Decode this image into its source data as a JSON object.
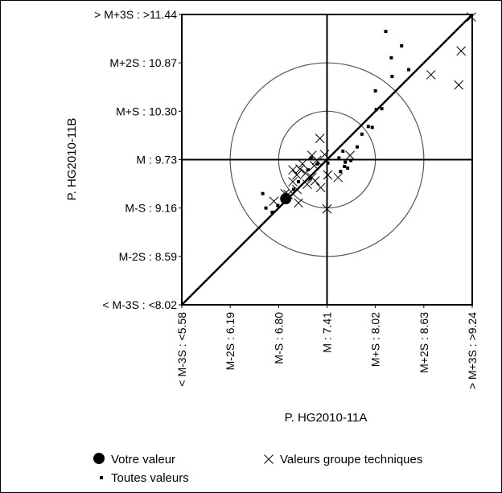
{
  "chart_data": {
    "type": "scatter",
    "xlabel": "P. HG2010-11A",
    "ylabel": "P. HG2010-11B",
    "xlim": [
      5.58,
      9.24
    ],
    "ylim": [
      8.02,
      11.44
    ],
    "x_ticks": [
      {
        "value": 5.58,
        "label": "< M-3S : <5.58"
      },
      {
        "value": 6.19,
        "label": "M-2S : 6.19"
      },
      {
        "value": 6.8,
        "label": "M-S : 6.80"
      },
      {
        "value": 7.41,
        "label": "M : 7.41"
      },
      {
        "value": 8.02,
        "label": "M+S : 8.02"
      },
      {
        "value": 8.63,
        "label": "M+2S : 8.63"
      },
      {
        "value": 9.24,
        "label": "> M+3S : >9.24"
      }
    ],
    "y_ticks": [
      {
        "value": 8.02,
        "label": "< M-3S : <8.02"
      },
      {
        "value": 8.59,
        "label": "M-2S : 8.59"
      },
      {
        "value": 9.16,
        "label": "M-S : 9.16"
      },
      {
        "value": 9.73,
        "label": "M : 9.73"
      },
      {
        "value": 10.3,
        "label": "M+S : 10.30"
      },
      {
        "value": 10.87,
        "label": "M+2S : 10.87"
      },
      {
        "value": 11.44,
        "label": "> M+3S : >11.44"
      }
    ],
    "mean": {
      "x": 7.41,
      "y": 9.73
    },
    "sd": {
      "x": 0.61,
      "y": 0.57
    },
    "circles_in_sd": [
      1,
      2
    ],
    "diagonal": true,
    "series": [
      {
        "name": "Votre valeur",
        "marker": "large-dot",
        "points": [
          [
            6.89,
            9.27
          ]
        ]
      },
      {
        "name": "Valeurs groupe techniques",
        "marker": "x",
        "points": [
          [
            7.32,
            9.98
          ],
          [
            7.22,
            9.78
          ],
          [
            7.38,
            9.79
          ],
          [
            7.7,
            9.78
          ],
          [
            6.98,
            9.61
          ],
          [
            7.07,
            9.62
          ],
          [
            7.1,
            9.68
          ],
          [
            7.25,
            9.66
          ],
          [
            7.03,
            9.55
          ],
          [
            7.14,
            9.57
          ],
          [
            7.26,
            9.48
          ],
          [
            7.42,
            9.55
          ],
          [
            7.55,
            9.52
          ],
          [
            7.16,
            9.44
          ],
          [
            7.33,
            9.4
          ],
          [
            6.98,
            9.47
          ],
          [
            7.03,
            9.38
          ],
          [
            6.92,
            9.32
          ],
          [
            7.05,
            9.22
          ],
          [
            6.74,
            9.24
          ],
          [
            6.88,
            9.33
          ],
          [
            7.41,
            9.15
          ],
          [
            7.28,
            9.72
          ],
          [
            8.72,
            10.73
          ],
          [
            9.07,
            10.61
          ],
          [
            9.1,
            11.01
          ],
          [
            9.23,
            11.41
          ],
          [
            7.22,
            9.52
          ]
        ]
      },
      {
        "name": "Toutes valeurs",
        "marker": "small-dot",
        "points": [
          [
            8.15,
            11.24
          ],
          [
            8.35,
            11.07
          ],
          [
            8.22,
            10.93
          ],
          [
            8.23,
            10.71
          ],
          [
            8.44,
            10.79
          ],
          [
            8.02,
            10.54
          ],
          [
            8.03,
            10.32
          ],
          [
            7.93,
            10.12
          ],
          [
            7.85,
            10.03
          ],
          [
            7.79,
            9.88
          ],
          [
            7.71,
            9.72
          ],
          [
            7.63,
            9.65
          ],
          [
            7.58,
            9.59
          ],
          [
            6.72,
            9.11
          ],
          [
            6.6,
            9.33
          ],
          [
            6.64,
            9.16
          ],
          [
            6.79,
            9.19
          ],
          [
            6.99,
            9.38
          ],
          [
            7.05,
            9.47
          ],
          [
            7.2,
            9.51
          ],
          [
            7.29,
            9.68
          ],
          [
            7.42,
            9.69
          ],
          [
            7.21,
            9.75
          ],
          [
            7.17,
            9.61
          ],
          [
            7.67,
            9.63
          ],
          [
            7.64,
            9.7
          ],
          [
            7.98,
            10.11
          ],
          [
            8.1,
            10.33
          ],
          [
            7.61,
            9.83
          ],
          [
            7.56,
            9.75
          ]
        ]
      }
    ],
    "legend": {
      "placement": "bottom",
      "items": [
        {
          "label": "Votre valeur",
          "marker": "large-dot"
        },
        {
          "label": "Valeurs groupe techniques",
          "marker": "x"
        },
        {
          "label": "Toutes valeurs",
          "marker": "small-dot"
        }
      ]
    },
    "grid": false,
    "colors": {
      "ink": "#000000",
      "circle": "#555555",
      "background": "#ffffff"
    }
  }
}
